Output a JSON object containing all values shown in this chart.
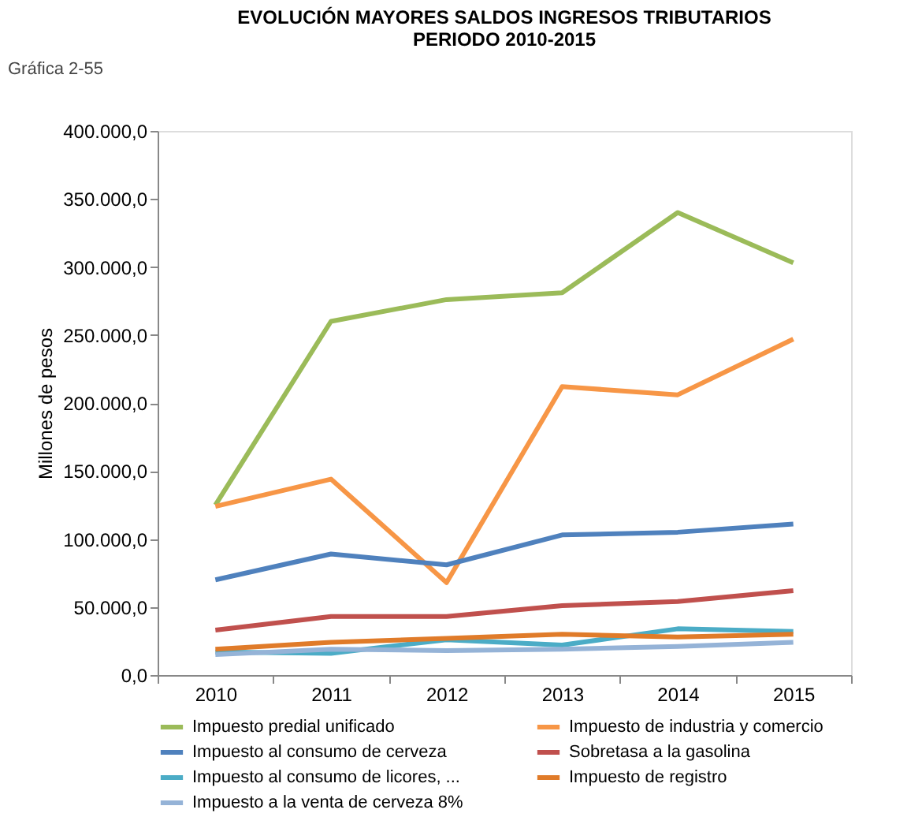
{
  "chart_data": {
    "type": "line",
    "title": [
      "EVOLUCIÓN MAYORES SALDOS INGRESOS TRIBUTARIOS",
      "PERIODO 2010-2015"
    ],
    "ylabel": "Millones de pesos",
    "annotations": [
      "Gráfica 2-55"
    ],
    "categories": [
      "2010",
      "2011",
      "2012",
      "2013",
      "2014",
      "2015"
    ],
    "ylim": [
      0,
      400000
    ],
    "yticks": [
      {
        "value": 0,
        "label": "0,0"
      },
      {
        "value": 50000,
        "label": "50.000,0"
      },
      {
        "value": 100000,
        "label": "100.000,0"
      },
      {
        "value": 150000,
        "label": "150.000,0"
      },
      {
        "value": 200000,
        "label": "200.000,0"
      },
      {
        "value": 250000,
        "label": "250.000,0"
      },
      {
        "value": 300000,
        "label": "300.000,0"
      },
      {
        "value": 350000,
        "label": "350.000,0"
      },
      {
        "value": 400000,
        "label": "400.000,0"
      }
    ],
    "grid": false,
    "legend": "bottom",
    "marker": "none",
    "line_style": "solid",
    "series": [
      {
        "name": "Impuesto predial unificado",
        "color": "#9bbb59",
        "values": [
          125000,
          260000,
          276000,
          281000,
          340000,
          303000
        ]
      },
      {
        "name": "Impuesto de industria y comercio",
        "color": "#f79646",
        "values": [
          124000,
          144000,
          68000,
          212000,
          206000,
          247000
        ]
      },
      {
        "name": "Impuesto al consumo de cerveza",
        "color": "#4f81bd",
        "values": [
          70000,
          89000,
          81000,
          103000,
          105000,
          111000
        ]
      },
      {
        "name": "Sobretasa a la gasolina",
        "color": "#c0504d",
        "values": [
          33000,
          43000,
          43000,
          51000,
          54000,
          62000
        ]
      },
      {
        "name": "Impuesto al consumo de licores, ...",
        "color": "#4bacc6",
        "values": [
          17000,
          16000,
          26000,
          22000,
          34000,
          32000
        ]
      },
      {
        "name": "Impuesto de registro",
        "color": "#e07b29",
        "values": [
          19000,
          24000,
          27000,
          30000,
          28000,
          30000
        ]
      },
      {
        "name": "Impuesto a la venta de cerveza 8%",
        "color": "#95b3d7",
        "values": [
          15000,
          19000,
          18000,
          19000,
          21000,
          24000
        ]
      }
    ]
  }
}
